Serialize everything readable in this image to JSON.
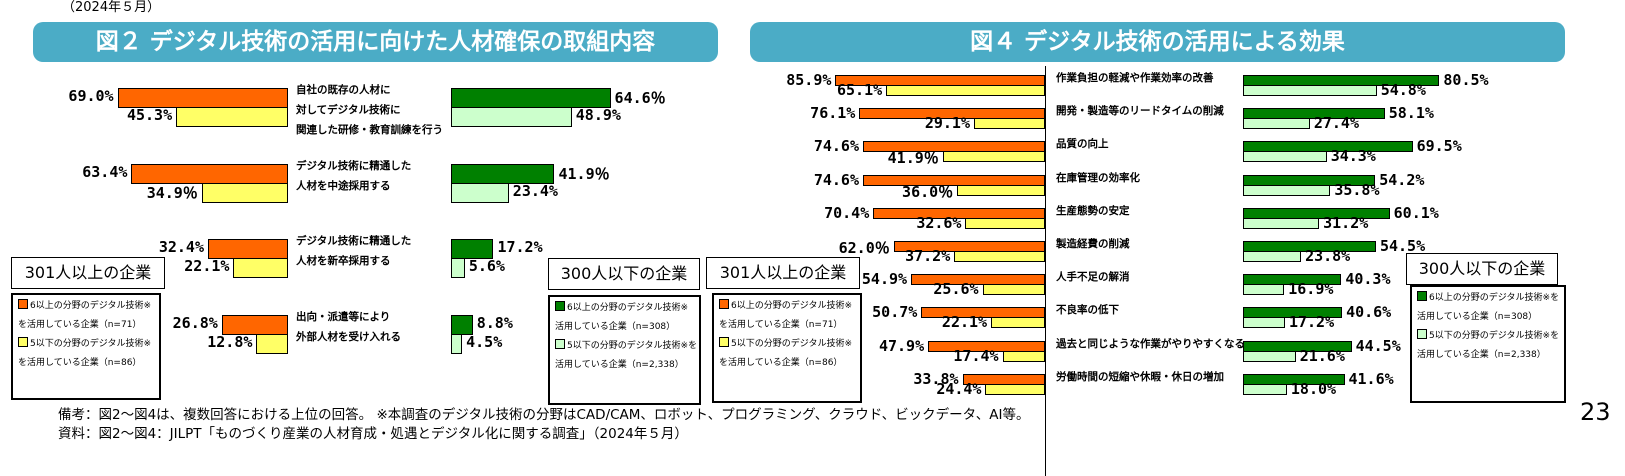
{
  "top_note": "（2024年５月）",
  "page_number": "23",
  "notes": [
    "備考：図2～図4は、複数回答における上位の回答。 ※本調査のデジタル技術の分野はCAD/CAM、ロボット、プログラミング、クラウド、ビックデータ、AI等。",
    "資料：図2～図4：JILPT「ものづくり産業の人材育成・処遇とデジタル化に関する調査」（2024年５月）"
  ],
  "colors": {
    "header": "#4bacc6",
    "orange": "#ff6600",
    "yellow": "#ffff66",
    "green": "#008000",
    "lightgreen": "#ccffcc"
  },
  "chart_data": [
    {
      "type": "bar",
      "orientation": "horizontal-butterfly",
      "title": "図２ デジタル技術の活用に向けた人材確保の取組内容",
      "categories": [
        "自社の既存の人材に\n対してデジタル技術に\n関連した研修・教育訓練を行う",
        "デジタル技術に精通した\n人材を中途採用する",
        "デジタル技術に精通した\n人材を新卒採用する",
        "出向・派遣等により\n外部人材を受け入れる"
      ],
      "groups": [
        {
          "name": "301人以上の企業",
          "series": [
            {
              "name": "6以上の分野のデジタル技術※\nを活用している企業（n=71）",
              "values": [
                69.0,
                63.4,
                32.4,
                26.8
              ],
              "labels": [
                "69.0%",
                "63.4%",
                "32.4%",
                "26.8%"
              ]
            },
            {
              "name": "5以下の分野のデジタル技術※\nを活用している企業（n=86）",
              "values": [
                45.3,
                34.9,
                22.1,
                12.8
              ],
              "labels": [
                "45.3%",
                "34.9％",
                "22.1%",
                "12.8%"
              ]
            }
          ]
        },
        {
          "name": "300人以下の企業",
          "series": [
            {
              "name": "6以上の分野のデジタル技術※\n活用している企業（n=308）",
              "values": [
                64.6,
                41.9,
                17.2,
                8.8
              ],
              "labels": [
                "64.6％",
                "41.9％",
                "17.2%",
                "8.8%"
              ]
            },
            {
              "name": "5以下の分野のデジタル技術※を\n活用している企業（n=2,338）",
              "values": [
                48.9,
                23.4,
                5.6,
                4.5
              ],
              "labels": [
                "48.9%",
                "23.4%",
                "5.6%",
                "4.5%"
              ]
            }
          ]
        }
      ]
    },
    {
      "type": "bar",
      "orientation": "horizontal-butterfly",
      "title": "図４ デジタル技術の活用による効果",
      "categories": [
        "作業負担の軽減や作業効率の改善",
        "開発・製造等のリードタイムの削減",
        "品質の向上",
        "在庫管理の効率化",
        "生産態勢の安定",
        "製造経費の削減",
        "人手不足の解消",
        "不良率の低下",
        "過去と同じような作業がやりやすくなる",
        "労働時間の短縮や休暇・休日の増加"
      ],
      "groups": [
        {
          "name": "301人以上の企業",
          "series": [
            {
              "name": "6以上の分野のデジタル技術※\nを活用している企業（n=71）",
              "values": [
                85.9,
                76.1,
                74.6,
                74.6,
                70.4,
                62.0,
                54.9,
                50.7,
                47.9,
                33.8
              ],
              "labels": [
                "85.9%",
                "76.1%",
                "74.6%",
                "74.6%",
                "70.4%",
                "62.0％",
                "54.9%",
                "50.7%",
                "47.9%",
                "33.8%"
              ]
            },
            {
              "name": "5以下の分野のデジタル技術※\nを活用している企業（n=86）",
              "values": [
                65.1,
                29.1,
                41.9,
                36.0,
                32.6,
                37.2,
                25.6,
                22.1,
                17.4,
                24.4
              ],
              "labels": [
                "65.1%",
                "29.1%",
                "41.9％",
                "36.0％",
                "32.6%",
                "37.2%",
                "25.6%",
                "22.1%",
                "17.4%",
                "24.4%"
              ]
            }
          ]
        },
        {
          "name": "300人以下の企業",
          "series": [
            {
              "name": "6以上の分野のデジタル技術※を\n活用している企業（n=308）",
              "values": [
                80.5,
                58.1,
                69.5,
                54.2,
                60.1,
                54.5,
                40.3,
                40.6,
                44.5,
                41.6
              ],
              "labels": [
                "80.5%",
                "58.1%",
                "69.5%",
                "54.2%",
                "60.1%",
                "54.5%",
                "40.3%",
                "40.6%",
                "44.5%",
                "41.6%"
              ]
            },
            {
              "name": "5以下の分野のデジタル技術※を\n活用している企業（n=2,338）",
              "values": [
                54.8,
                27.4,
                34.3,
                35.8,
                31.2,
                23.8,
                16.9,
                17.2,
                21.6,
                18.0
              ],
              "labels": [
                "54.8%",
                "27.4%",
                "34.3%",
                "35.8%",
                "31.2%",
                "23.8%",
                "16.9%",
                "17.2%",
                "21.6%",
                "18.0%"
              ]
            }
          ]
        }
      ]
    }
  ]
}
